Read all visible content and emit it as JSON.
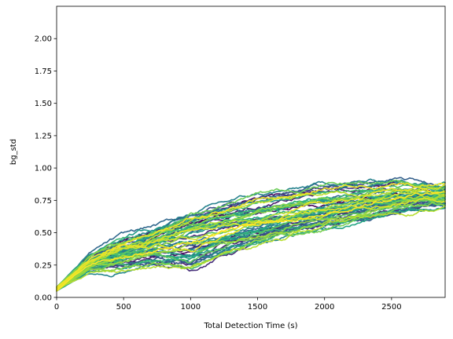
{
  "chart_data": {
    "type": "line",
    "title": "",
    "xlabel": "Total Detection Time (s)",
    "ylabel": "bg_std",
    "xlim": [
      0,
      2900
    ],
    "ylim": [
      0,
      2.25
    ],
    "xticks": [
      0,
      500,
      1000,
      1500,
      2000,
      2500
    ],
    "yticks": [
      0.0,
      0.25,
      0.5,
      0.75,
      1.0,
      1.25,
      1.5,
      1.75,
      2.0
    ],
    "xtick_labels": [
      "0",
      "500",
      "1000",
      "1500",
      "2000",
      "2500"
    ],
    "ytick_labels": [
      "0.00",
      "0.25",
      "0.50",
      "0.75",
      "1.00",
      "1.25",
      "1.50",
      "1.75",
      "2.00"
    ],
    "grid": false,
    "legend": "none",
    "colormap": "viridis",
    "series_count": 60,
    "series": [
      {
        "x": [
          0,
          250,
          500,
          750,
          1000,
          1250,
          1500,
          1750,
          2000,
          2250,
          2500,
          2750,
          2900
        ],
        "y": [
          0.08,
          0.3,
          0.4,
          0.48,
          0.55,
          0.6,
          0.62,
          0.66,
          0.7,
          0.74,
          0.77,
          0.79,
          0.8
        ]
      },
      {
        "x": [
          0,
          250,
          500,
          750,
          1000,
          1250,
          1500,
          1750,
          2000,
          2250,
          2500,
          2750,
          2900
        ],
        "y": [
          0.06,
          0.25,
          0.3,
          0.32,
          0.28,
          0.4,
          0.48,
          0.57,
          0.62,
          0.66,
          0.72,
          0.76,
          0.78
        ]
      },
      {
        "x": [
          0,
          250,
          500,
          750,
          1000,
          1250,
          1500,
          1750,
          2000,
          2250,
          2500,
          2750,
          2900
        ],
        "y": [
          0.07,
          0.27,
          0.36,
          0.46,
          0.58,
          0.66,
          0.72,
          0.75,
          0.8,
          0.82,
          0.84,
          0.82,
          0.78
        ]
      },
      {
        "x": [
          0,
          250,
          500,
          750,
          1000,
          1250,
          1500,
          1750,
          2000,
          2250,
          2500,
          2750,
          2900
        ],
        "y": [
          0.05,
          0.24,
          0.31,
          0.36,
          0.4,
          0.44,
          0.5,
          0.54,
          0.58,
          0.64,
          0.7,
          0.75,
          0.77
        ]
      }
    ]
  }
}
